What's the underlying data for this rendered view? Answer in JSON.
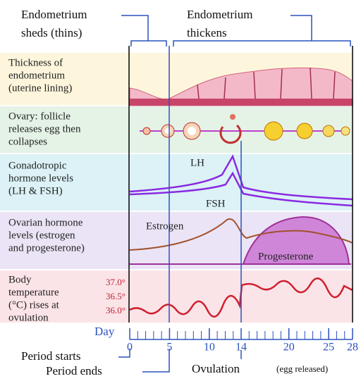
{
  "header": {
    "shed": [
      "Endometrium",
      "sheds (thins)"
    ],
    "thicken": [
      "Endometrium",
      "thickens"
    ]
  },
  "rows": [
    {
      "label": [
        "Thickness of",
        "endometrium",
        "(uterine lining)"
      ]
    },
    {
      "label": [
        "Ovary: follicle",
        "releases egg then",
        "collapses"
      ]
    },
    {
      "label": [
        "Gonadotropic",
        "hormone levels",
        "(LH & FSH)"
      ],
      "curves": [
        "LH",
        "FSH"
      ]
    },
    {
      "label": [
        "Ovarian hormone",
        "levels (estrogen",
        "and progesterone)"
      ],
      "curves": [
        "Estrogen",
        "Progesterone"
      ]
    },
    {
      "label": [
        "Body",
        "temperature",
        "(°C) rises at",
        "ovulation"
      ],
      "scale": [
        "37.0°",
        "36.5°",
        "36.0°"
      ]
    }
  ],
  "axis": {
    "title": "Day",
    "ticks": [
      0,
      5,
      10,
      14,
      20,
      25,
      28
    ]
  },
  "events": {
    "start": "Period starts",
    "end": "Period ends",
    "ovulation": "Ovulation",
    "ovulation_note": "(egg released)"
  }
}
